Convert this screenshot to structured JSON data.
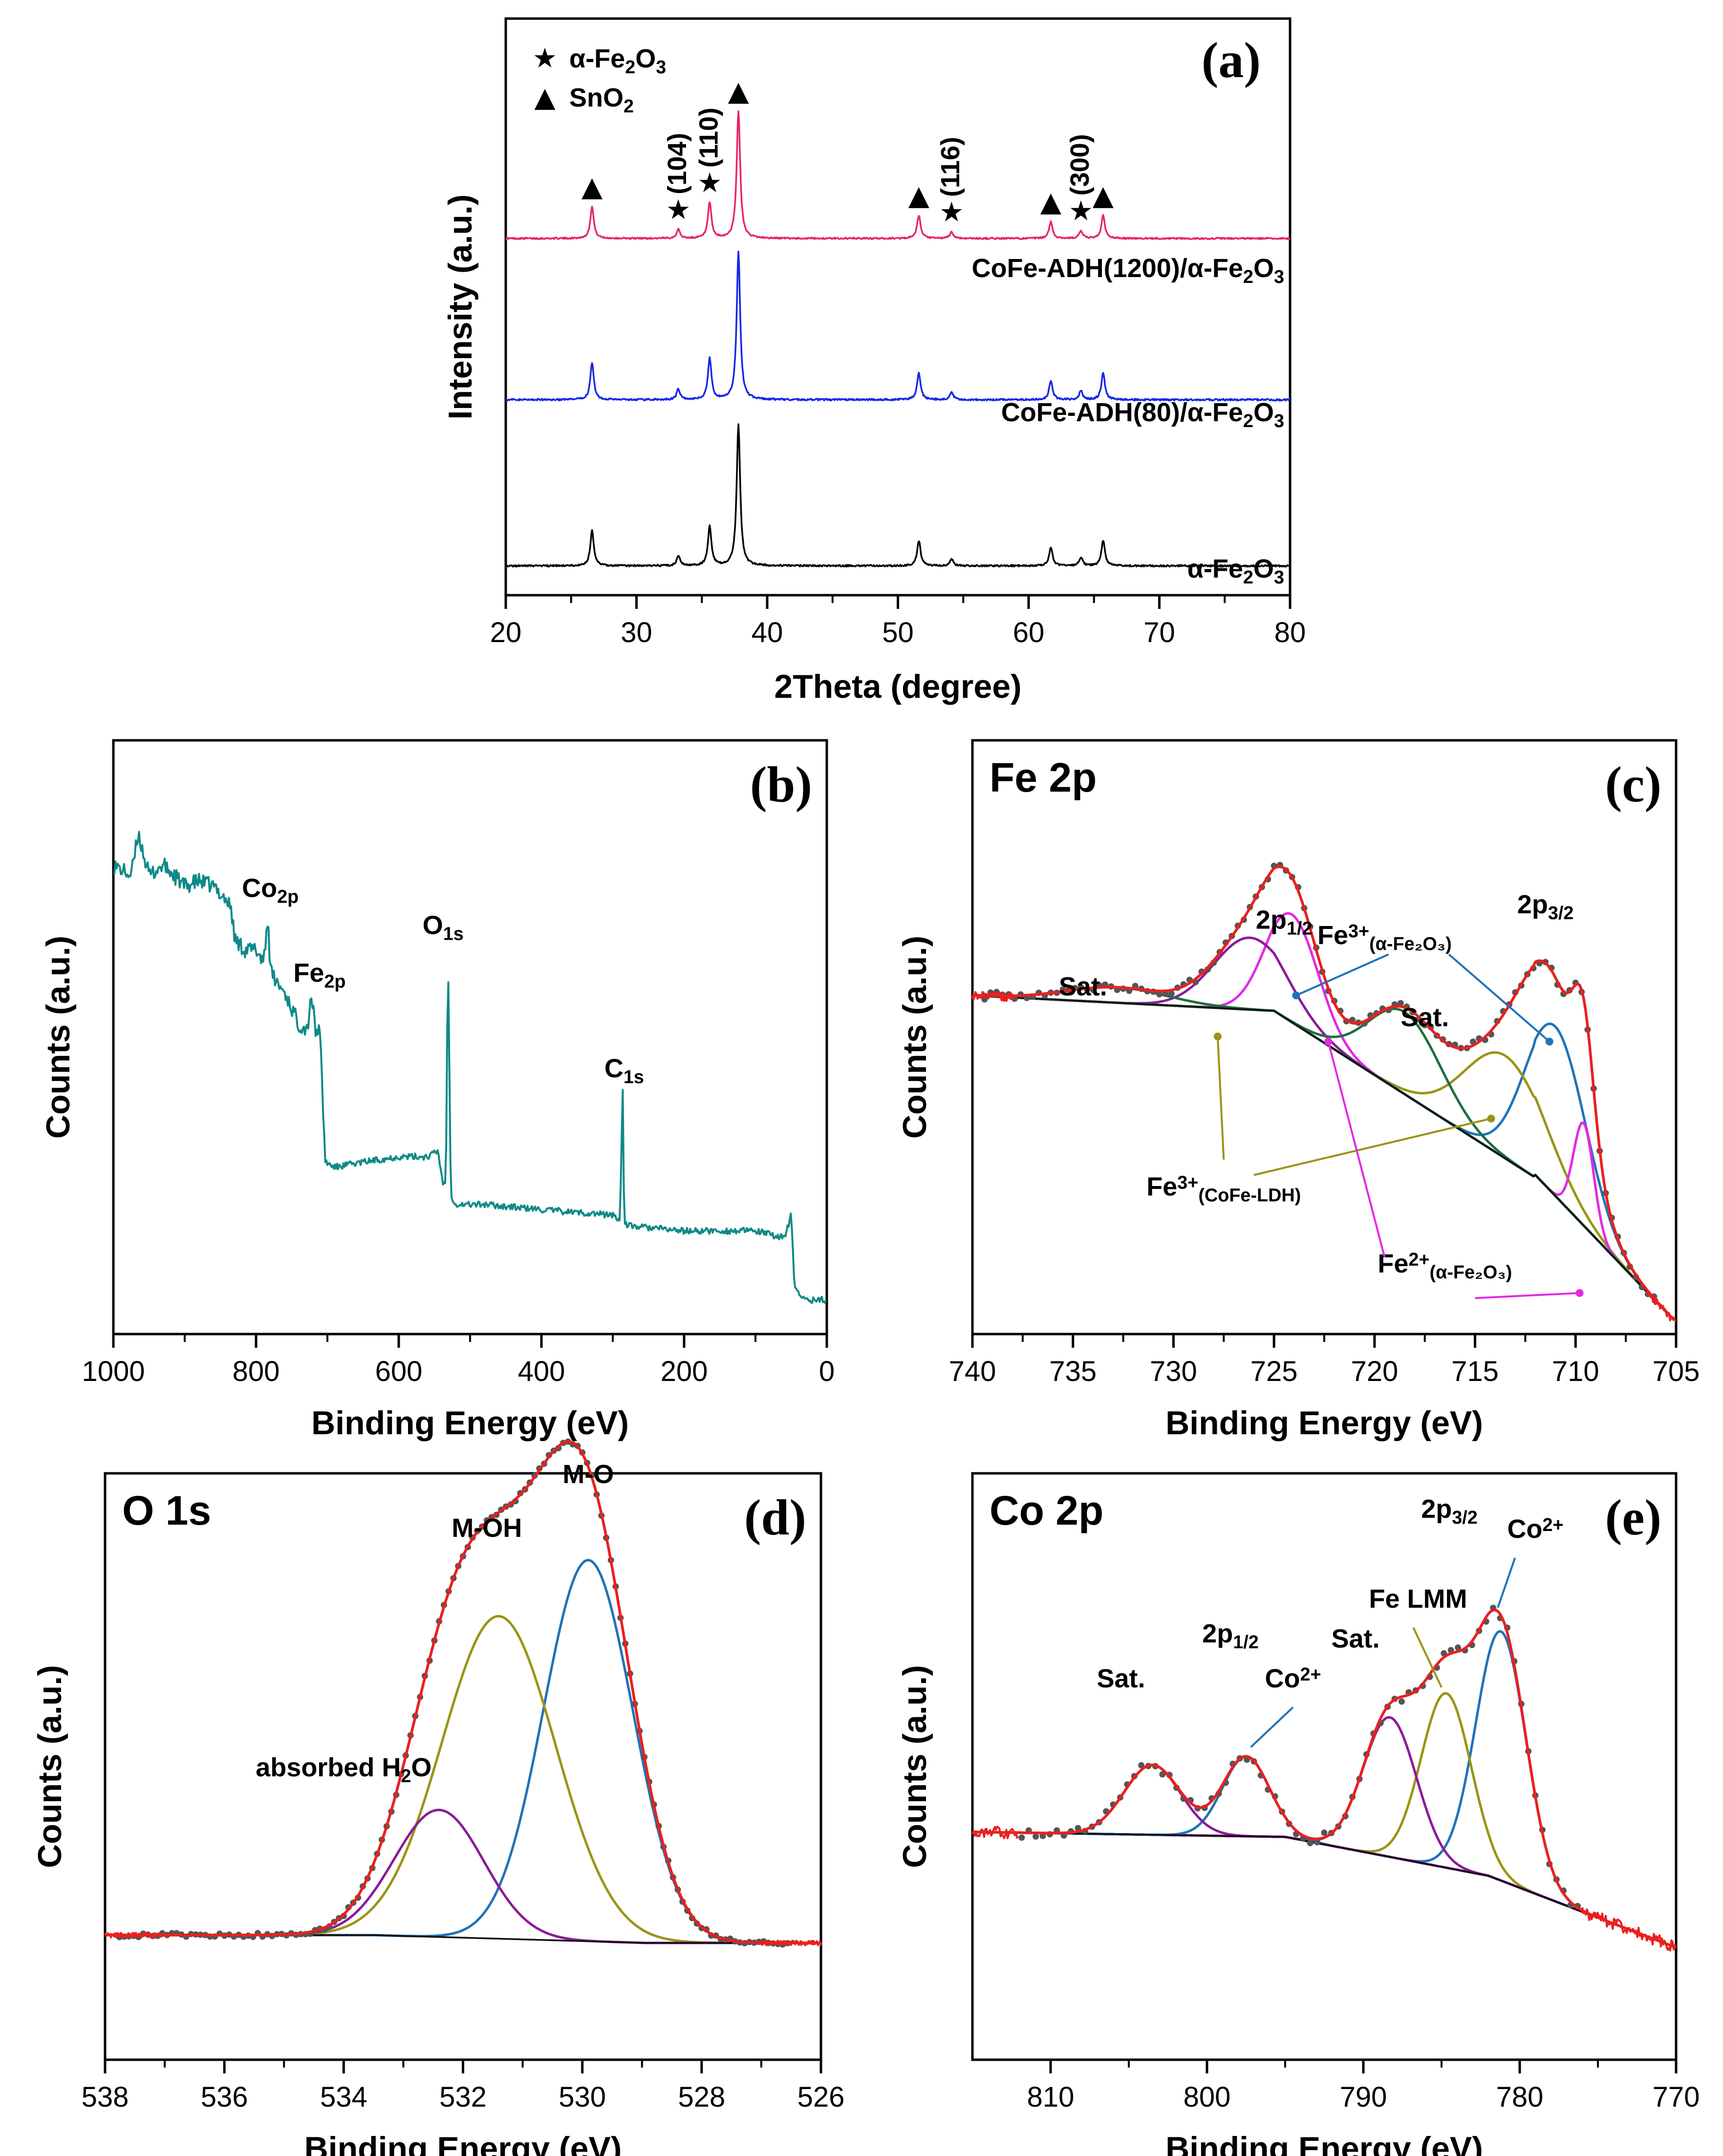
{
  "colors": {
    "pink": "#e8246e",
    "blue": "#1428e6",
    "black": "#000000",
    "teal": "#0e8a87",
    "red": "#e8211f",
    "fitblue": "#1f73b8",
    "olive": "#9a9414",
    "magenta": "#e428e4",
    "purple": "#8c1a9a",
    "green": "#1e6e3c",
    "dots": "#555555"
  },
  "chart_data": [
    {
      "id": "a",
      "type": "line",
      "panel_label": "(a)",
      "xlabel": "2Theta (degree)",
      "ylabel": "Intensity (a.u.)",
      "xlim": [
        20,
        80
      ],
      "xticks": [
        20,
        30,
        40,
        50,
        60,
        70,
        80
      ],
      "legend": [
        {
          "marker": "★",
          "label": "α-Fe",
          "sub": "2",
          "tail": "O",
          "sub2": "3"
        },
        {
          "marker": "▲",
          "label": "SnO",
          "sub": "2",
          "tail": "",
          "sub2": ""
        }
      ],
      "peaks": [
        {
          "pos": 26.6,
          "height": 0.25
        },
        {
          "pos": 33.2,
          "height": 0.07
        },
        {
          "pos": 35.6,
          "height": 0.28
        },
        {
          "pos": 37.8,
          "height": 1.0
        },
        {
          "pos": 51.6,
          "height": 0.18
        },
        {
          "pos": 54.1,
          "height": 0.05
        },
        {
          "pos": 61.7,
          "height": 0.13
        },
        {
          "pos": 64.0,
          "height": 0.06
        },
        {
          "pos": 65.7,
          "height": 0.18
        }
      ],
      "series": [
        {
          "name": "CoFe-ADH(1200)/α-Fe",
          "sub": "2",
          "tail": "O",
          "sub2": "3",
          "color": "pink",
          "offset": 2,
          "scale": 0.62
        },
        {
          "name": "CoFe-ADH(80)/α-Fe",
          "sub": "2",
          "tail": "O",
          "sub2": "3",
          "color": "blue",
          "offset": 1,
          "scale": 0.95
        },
        {
          "name": "α-Fe",
          "sub": "2",
          "tail": "O",
          "sub2": "3",
          "color": "black",
          "offset": 0,
          "scale": 0.9
        }
      ],
      "annotations": [
        {
          "marker": "▲",
          "x": 26.6,
          "text": ""
        },
        {
          "marker": "★",
          "x": 33.2,
          "text": "(104)"
        },
        {
          "marker": "★",
          "x": 35.6,
          "text": "(110)"
        },
        {
          "marker": "▲",
          "x": 37.8,
          "text": ""
        },
        {
          "marker": "▲",
          "x": 51.6,
          "text": ""
        },
        {
          "marker": "★",
          "x": 54.1,
          "text": "(116)"
        },
        {
          "marker": "▲",
          "x": 61.7,
          "text": ""
        },
        {
          "marker": "★",
          "x": 64.0,
          "text": "(300)"
        },
        {
          "marker": "▲",
          "x": 65.7,
          "text": ""
        }
      ]
    },
    {
      "id": "b",
      "type": "line",
      "panel_label": "(b)",
      "xlabel": "Binding Energy (eV)",
      "ylabel": "Counts (a.u.)",
      "xlim": [
        1000,
        0
      ],
      "xticks": [
        1000,
        800,
        600,
        400,
        200,
        0
      ],
      "x": [
        1000,
        975,
        965,
        950,
        930,
        900,
        880,
        860,
        845,
        835,
        830,
        815,
        800,
        790,
        783,
        780,
        772,
        760,
        740,
        728,
        723,
        716,
        712,
        709,
        703,
        690,
        650,
        600,
        560,
        545,
        538,
        534,
        531,
        527,
        520,
        480,
        400,
        300,
        290,
        286,
        284,
        280,
        200,
        100,
        70,
        58,
        50,
        45,
        30,
        0
      ],
      "y": [
        0.82,
        0.8,
        0.88,
        0.8,
        0.82,
        0.78,
        0.79,
        0.78,
        0.76,
        0.74,
        0.68,
        0.66,
        0.66,
        0.64,
        0.72,
        0.62,
        0.6,
        0.58,
        0.52,
        0.51,
        0.58,
        0.5,
        0.52,
        0.46,
        0.26,
        0.25,
        0.26,
        0.27,
        0.27,
        0.28,
        0.22,
        0.22,
        0.66,
        0.2,
        0.18,
        0.18,
        0.17,
        0.16,
        0.15,
        0.4,
        0.15,
        0.14,
        0.13,
        0.13,
        0.12,
        0.12,
        0.16,
        0.02,
        0.0,
        0.0
      ],
      "color": "teal",
      "annotations": [
        {
          "text": "Co",
          "sub": "2p",
          "x": 780,
          "y": 0.76
        },
        {
          "text": "Fe",
          "sub": "2p",
          "x": 711,
          "y": 0.6
        },
        {
          "text": "O",
          "sub": "1s",
          "x": 531,
          "y": 0.69
        },
        {
          "text": "C",
          "sub": "1s",
          "x": 284,
          "y": 0.42
        }
      ]
    },
    {
      "id": "c",
      "type": "line",
      "panel_label": "(c)",
      "title": "Fe 2p",
      "xlabel": "Binding Energy (eV)",
      "ylabel": "Counts (a.u.)",
      "xlim": [
        740,
        705
      ],
      "xticks": [
        740,
        735,
        730,
        725,
        720,
        715,
        710,
        705
      ],
      "components": [
        {
          "name": "Fe3+ (α-Fe2O3) 2p3/2",
          "center": 711.0,
          "height": 0.33,
          "width": 1.5,
          "color": "fitblue"
        },
        {
          "name": "Fe3+ (CoFe-LDH) 2p3/2",
          "center": 713.5,
          "height": 0.2,
          "width": 2.0,
          "color": "olive"
        },
        {
          "name": "Fe2+ (α-Fe2O3) 2p3/2",
          "center": 709.6,
          "height": 0.2,
          "width": 0.5,
          "color": "magenta"
        },
        {
          "name": "Fe3+ (α-Fe2O3) 2p1/2",
          "center": 724.1,
          "height": 0.21,
          "width": 1.3,
          "color": "magenta"
        },
        {
          "name": "Fe3+ (CoFe-LDH) 2p1/2",
          "center": 726.2,
          "height": 0.14,
          "width": 1.8,
          "color": "purple"
        },
        {
          "name": "Sat. 718.5",
          "center": 718.5,
          "height": 0.16,
          "width": 1.8,
          "color": "green"
        },
        {
          "name": "Sat. 733",
          "center": 732.8,
          "height": 0.03,
          "width": 2.5,
          "color": "green"
        }
      ],
      "annotations": [
        {
          "text": "Sat.",
          "x": 734.5,
          "y": 0.66
        },
        {
          "text": "2p",
          "sub": "1/2",
          "x": 724.5,
          "y": 0.79
        },
        {
          "text": "Sat.",
          "x": 717.5,
          "y": 0.6
        },
        {
          "text": "2p",
          "sub": "3/2",
          "x": 711.5,
          "y": 0.82
        },
        {
          "text": "Fe",
          "sup": "3+",
          "sub": "(α-Fe₂O₃)",
          "x": 719.5,
          "y": 0.76
        },
        {
          "text": "Fe",
          "sup": "3+",
          "sub": "(CoFe-LDH)",
          "x": 727.5,
          "y": 0.27
        },
        {
          "text": "Fe",
          "sup": "2+",
          "sub": "(α-Fe₂O₃)",
          "x": 716.5,
          "y": 0.12
        }
      ]
    },
    {
      "id": "d",
      "type": "line",
      "panel_label": "(d)",
      "title": "O 1s",
      "xlabel": "Binding Energy (eV)",
      "ylabel": "Counts (a.u.)",
      "xlim": [
        538,
        526
      ],
      "xticks": [
        538,
        536,
        534,
        532,
        530,
        528,
        526
      ],
      "components": [
        {
          "name": "M-O",
          "center": 529.9,
          "height": 0.78,
          "width": 0.75,
          "color": "fitblue"
        },
        {
          "name": "M-OH",
          "center": 531.4,
          "height": 0.66,
          "width": 0.95,
          "color": "olive"
        },
        {
          "name": "absorbed H2O",
          "center": 532.4,
          "height": 0.26,
          "width": 0.75,
          "color": "purple"
        }
      ],
      "annotations": [
        {
          "text": "M-O",
          "x": 529.9,
          "y": 0.93
        },
        {
          "text": "M-OH",
          "x": 531.6,
          "y": 0.82
        },
        {
          "text": "absorbed H",
          "sub": "2",
          "tail": "O",
          "x": 534.0,
          "y": 0.33
        }
      ]
    },
    {
      "id": "e",
      "type": "line",
      "panel_label": "(e)",
      "title": "Co 2p",
      "xlabel": "Binding Energy (eV)",
      "ylabel": "Counts (a.u.)",
      "xlim": [
        815,
        770
      ],
      "xticks": [
        810,
        800,
        790,
        780,
        770
      ],
      "components": [
        {
          "name": "Co2+ 2p3/2",
          "center": 781.2,
          "height": 0.5,
          "width": 1.6,
          "color": "fitblue"
        },
        {
          "name": "Fe LMM",
          "center": 784.7,
          "height": 0.35,
          "width": 1.6,
          "color": "olive"
        },
        {
          "name": "Sat. 788",
          "center": 788.3,
          "height": 0.28,
          "width": 1.7,
          "color": "purple"
        },
        {
          "name": "Co2+ 2p1/2",
          "center": 797.5,
          "height": 0.16,
          "width": 1.5,
          "color": "fitblue"
        },
        {
          "name": "Sat. 803",
          "center": 803.5,
          "height": 0.14,
          "width": 1.8,
          "color": "purple"
        }
      ],
      "annotations": [
        {
          "text": "Sat.",
          "x": 805.5,
          "y": 0.6
        },
        {
          "text": "2p",
          "sub": "1/2",
          "x": 798.5,
          "y": 0.69
        },
        {
          "text": "Co",
          "sup": "2+",
          "x": 794.5,
          "y": 0.6
        },
        {
          "text": "Sat.",
          "x": 790.5,
          "y": 0.68
        },
        {
          "text": "Fe LMM",
          "x": 786.5,
          "y": 0.76
        },
        {
          "text": "2p",
          "sub": "3/2",
          "x": 784.5,
          "y": 0.94
        },
        {
          "text": "Co",
          "sup": "2+",
          "x": 779.0,
          "y": 0.9
        }
      ]
    }
  ]
}
